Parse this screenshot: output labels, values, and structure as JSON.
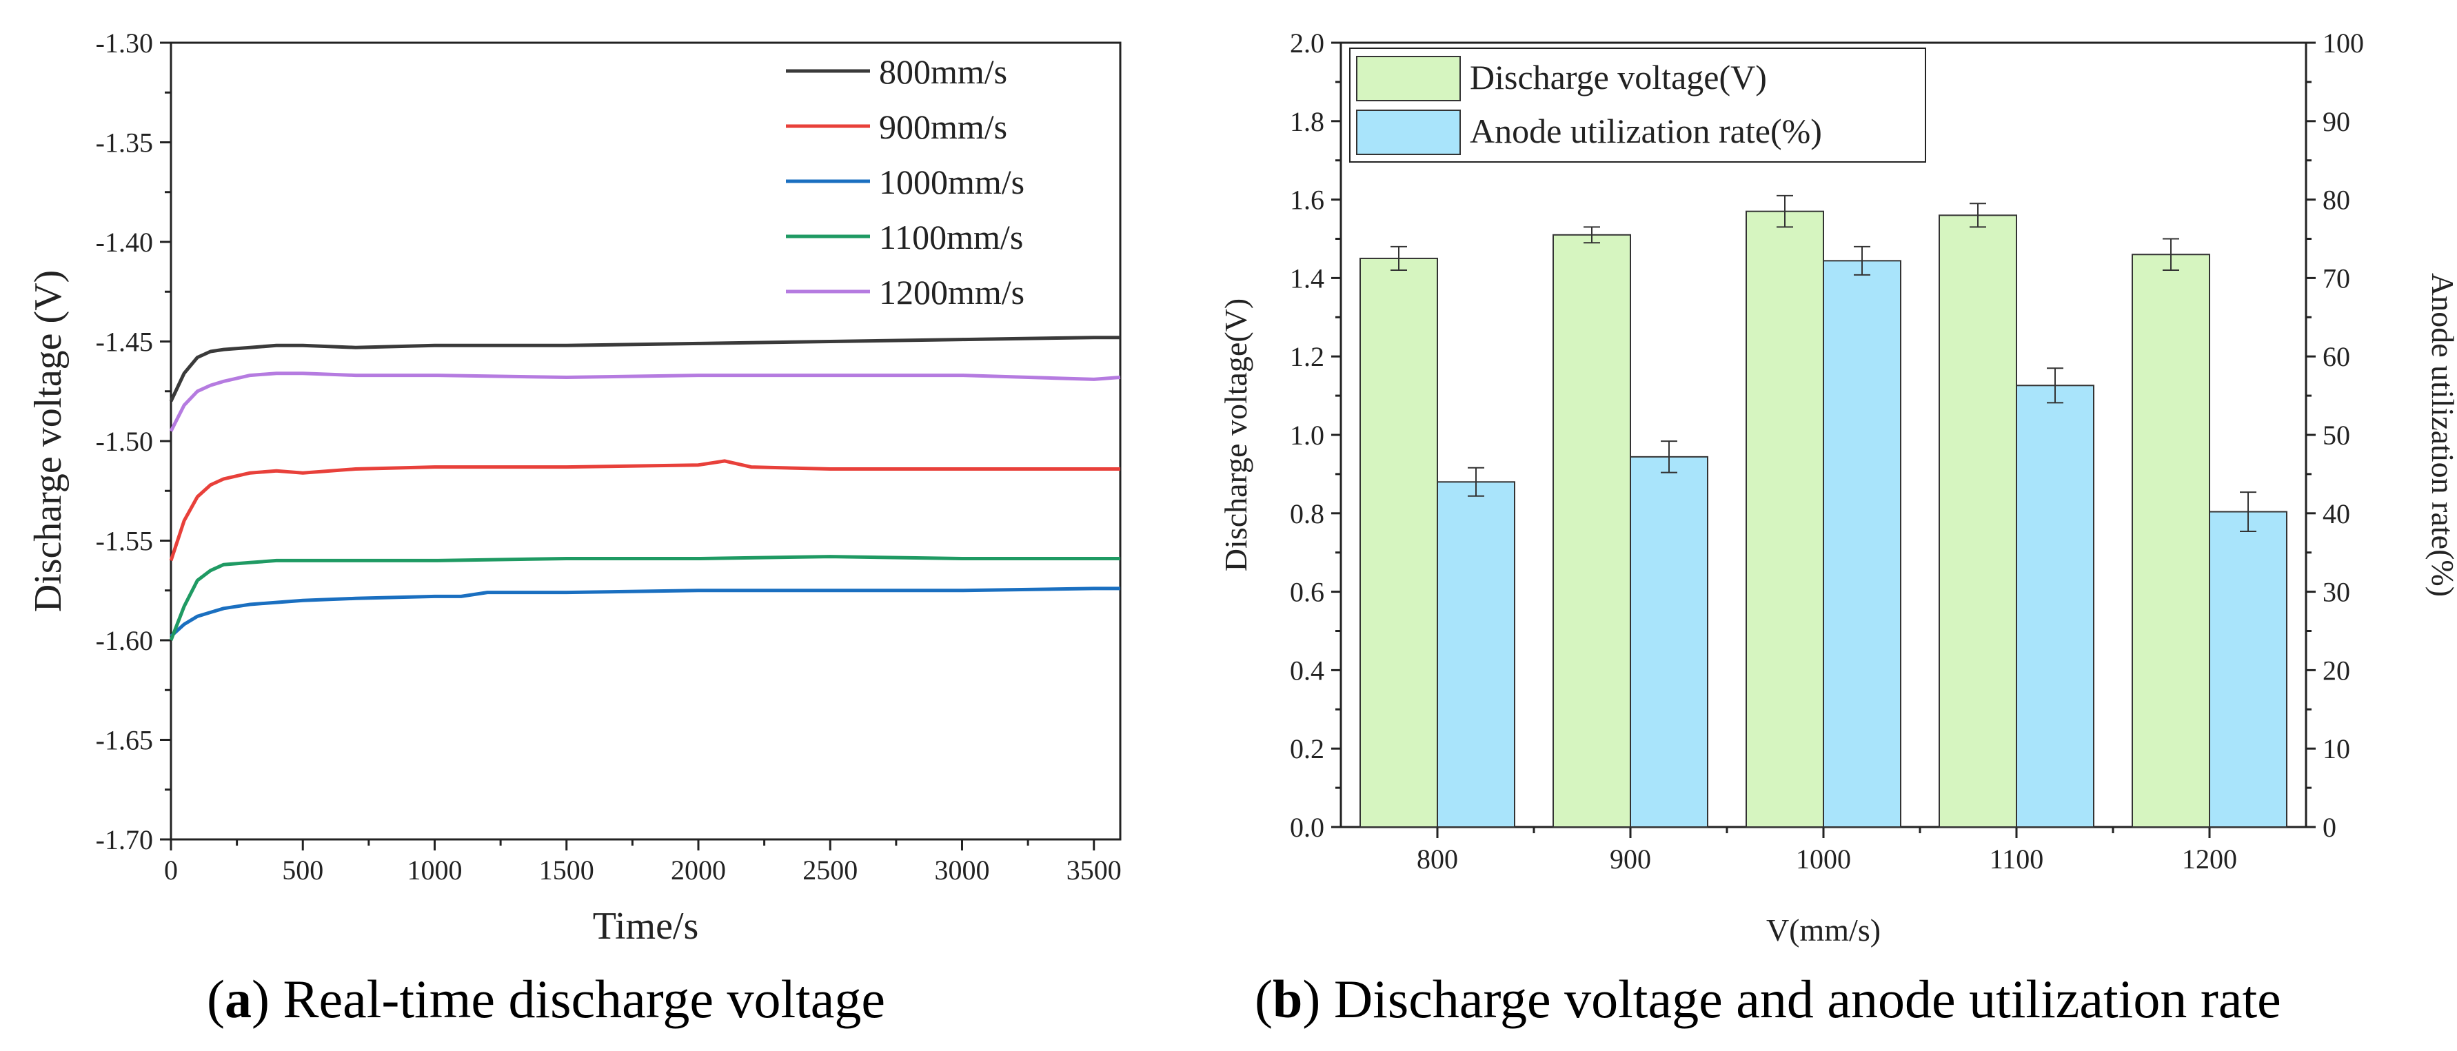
{
  "chart_data": [
    {
      "type": "line",
      "panel_label": "a",
      "caption": "Real-time discharge voltage",
      "xlabel": "Time/s",
      "ylabel": "Discharge voltage (V)",
      "xlim": [
        0,
        3600
      ],
      "ylim": [
        -1.7,
        -1.3
      ],
      "xticks": [
        "0",
        "500",
        "1000",
        "1500",
        "2000",
        "2500",
        "3000",
        "3500"
      ],
      "xtick_values": [
        0,
        500,
        1000,
        1500,
        2000,
        2500,
        3000,
        3500
      ],
      "yticks": [
        "-1.30",
        "-1.35",
        "-1.40",
        "-1.45",
        "-1.50",
        "-1.55",
        "-1.60",
        "-1.65",
        "-1.70"
      ],
      "ytick_values": [
        -1.3,
        -1.35,
        -1.4,
        -1.45,
        -1.5,
        -1.55,
        -1.6,
        -1.65,
        -1.7
      ],
      "legend_position": "top-right",
      "grid": false,
      "series": [
        {
          "name": "800mm/s",
          "color": "#3a3a3a",
          "x": [
            0,
            50,
            100,
            150,
            200,
            300,
            400,
            500,
            700,
            1000,
            1500,
            2000,
            2500,
            3000,
            3500,
            3600
          ],
          "y": [
            -1.48,
            -1.466,
            -1.458,
            -1.455,
            -1.454,
            -1.453,
            -1.452,
            -1.452,
            -1.453,
            -1.452,
            -1.452,
            -1.451,
            -1.45,
            -1.449,
            -1.448,
            -1.448
          ]
        },
        {
          "name": "900mm/s",
          "color": "#e8403a",
          "x": [
            0,
            50,
            100,
            150,
            200,
            300,
            400,
            500,
            700,
            1000,
            1500,
            2000,
            2100,
            2200,
            2500,
            3000,
            3500,
            3600
          ],
          "y": [
            -1.56,
            -1.54,
            -1.528,
            -1.522,
            -1.519,
            -1.516,
            -1.515,
            -1.516,
            -1.514,
            -1.513,
            -1.513,
            -1.512,
            -1.51,
            -1.513,
            -1.514,
            -1.514,
            -1.514,
            -1.514
          ]
        },
        {
          "name": "1000mm/s",
          "color": "#1a6fc0",
          "x": [
            0,
            50,
            100,
            150,
            200,
            300,
            400,
            500,
            700,
            1000,
            1100,
            1200,
            1500,
            2000,
            2500,
            3000,
            3500,
            3600
          ],
          "y": [
            -1.598,
            -1.592,
            -1.588,
            -1.586,
            -1.584,
            -1.582,
            -1.581,
            -1.58,
            -1.579,
            -1.578,
            -1.578,
            -1.576,
            -1.576,
            -1.575,
            -1.575,
            -1.575,
            -1.574,
            -1.574
          ]
        },
        {
          "name": "1100mm/s",
          "color": "#1f9a63",
          "x": [
            0,
            50,
            100,
            150,
            200,
            300,
            400,
            500,
            700,
            1000,
            1500,
            2000,
            2500,
            3000,
            3500,
            3600
          ],
          "y": [
            -1.6,
            -1.583,
            -1.57,
            -1.565,
            -1.562,
            -1.561,
            -1.56,
            -1.56,
            -1.56,
            -1.56,
            -1.559,
            -1.559,
            -1.558,
            -1.559,
            -1.559,
            -1.559
          ]
        },
        {
          "name": "1200mm/s",
          "color": "#b57be0",
          "x": [
            0,
            50,
            100,
            150,
            200,
            300,
            400,
            500,
            700,
            1000,
            1500,
            2000,
            2500,
            3000,
            3500,
            3600
          ],
          "y": [
            -1.495,
            -1.482,
            -1.475,
            -1.472,
            -1.47,
            -1.467,
            -1.466,
            -1.466,
            -1.467,
            -1.467,
            -1.468,
            -1.467,
            -1.467,
            -1.467,
            -1.469,
            -1.468
          ]
        }
      ]
    },
    {
      "type": "bar",
      "panel_label": "b",
      "caption": "Discharge voltage and anode utilization rate",
      "xlabel": "V(mm/s)",
      "ylabel": "Discharge voltage(V)",
      "ylabel_right": "Anode utilization rate(%)",
      "categories": [
        "800",
        "900",
        "1000",
        "1100",
        "1200"
      ],
      "ylim": [
        0,
        2.0
      ],
      "ylim_right": [
        0,
        100
      ],
      "yticks": [
        "0.0",
        "0.2",
        "0.4",
        "0.6",
        "0.8",
        "1.0",
        "1.2",
        "1.4",
        "1.6",
        "1.8",
        "2.0"
      ],
      "ytick_values": [
        0,
        0.2,
        0.4,
        0.6,
        0.8,
        1.0,
        1.2,
        1.4,
        1.6,
        1.8,
        2.0
      ],
      "yticks_right": [
        "0",
        "10",
        "20",
        "30",
        "40",
        "50",
        "60",
        "70",
        "80",
        "90",
        "100"
      ],
      "ytick_values_right": [
        0,
        10,
        20,
        30,
        40,
        50,
        60,
        70,
        80,
        90,
        100
      ],
      "legend_position": "top-left",
      "grid": false,
      "series": [
        {
          "name": "Discharge voltage(V)",
          "axis": "left",
          "color": "#d6f5c0",
          "values": [
            1.45,
            1.51,
            1.57,
            1.56,
            1.46
          ],
          "errors": [
            0.03,
            0.02,
            0.04,
            0.03,
            0.04
          ]
        },
        {
          "name": "Anode utilization rate(%)",
          "axis": "right",
          "color": "#a9e4fb",
          "values": [
            44.0,
            47.2,
            72.2,
            56.3,
            40.2
          ],
          "errors": [
            1.8,
            2.0,
            1.8,
            2.2,
            2.5
          ]
        }
      ]
    }
  ]
}
